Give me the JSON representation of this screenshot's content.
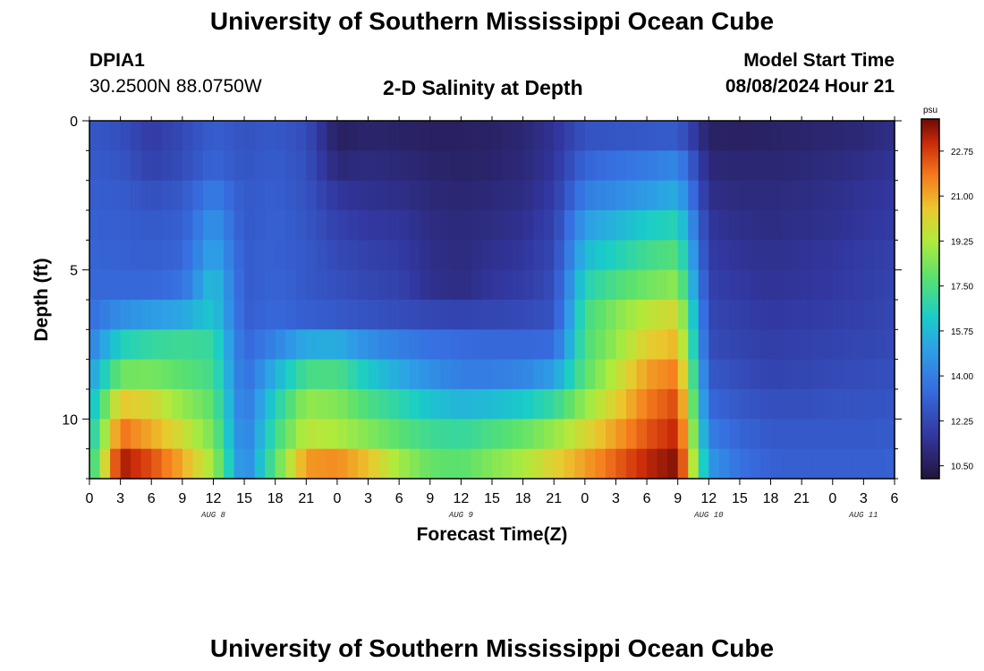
{
  "header": {
    "main_title": "University of Southern Mississippi Ocean Cube",
    "station_name": "DPIA1",
    "station_coords": "30.2500N  88.0750W",
    "plot_title": "2-D Salinity at Depth",
    "model_start_label": "Model Start Time",
    "model_start_value": "08/08/2024 Hour 21"
  },
  "footer": {
    "title": "University of Southern Mississippi Ocean Cube"
  },
  "chart_data": {
    "type": "heatmap",
    "title": "2-D Salinity at Depth",
    "xlabel": "Forecast Time(Z)",
    "ylabel": "Depth (ft)",
    "colorbar_unit": "psu",
    "ylim": [
      0,
      12
    ],
    "y_ticks": [
      "0",
      "5",
      "10"
    ],
    "x_tick_labels": [
      "0",
      "3",
      "6",
      "9",
      "12",
      "15",
      "18",
      "21",
      "0",
      "3",
      "6",
      "9",
      "12",
      "15",
      "18",
      "21",
      "0",
      "3",
      "6",
      "9",
      "12",
      "15",
      "18",
      "21",
      "0",
      "3",
      "6"
    ],
    "date_labels": [
      {
        "text": "AUG 8",
        "hour": 12
      },
      {
        "text": "AUG 9",
        "hour": 36
      },
      {
        "text": "AUG 10",
        "hour": 60
      },
      {
        "text": "AUG 11",
        "hour": 75
      }
    ],
    "colorbar_ticks": [
      "22.75",
      "21.00",
      "19.25",
      "17.50",
      "15.75",
      "14.00",
      "12.25",
      "10.50"
    ],
    "colorbar_values": [
      22.75,
      21.0,
      19.25,
      17.5,
      15.75,
      14.0,
      12.25,
      10.5
    ],
    "value_range": [
      10.0,
      24.0
    ],
    "depth_levels_ft": [
      0.5,
      1.5,
      2.5,
      3.5,
      4.5,
      5.5,
      6.5,
      7.5,
      8.5,
      9.5,
      10.5,
      11.5
    ],
    "hours": [
      0,
      3,
      6,
      9,
      12,
      15,
      18,
      21,
      24,
      27,
      30,
      33,
      36,
      39,
      42,
      45,
      48,
      51,
      54,
      57,
      60,
      63,
      66,
      69,
      72,
      75,
      78
    ],
    "salinity": [
      [
        12.8,
        12.5,
        11.8,
        12.3,
        13.0,
        12.6,
        12.8,
        12.4,
        10.6,
        10.8,
        10.7,
        10.6,
        10.6,
        10.7,
        10.9,
        11.5,
        12.6,
        12.7,
        12.8,
        12.9,
        10.7,
        10.6,
        10.7,
        10.8,
        10.9,
        11.0,
        11.3
      ],
      [
        12.9,
        12.7,
        12.0,
        12.4,
        13.2,
        12.7,
        12.9,
        12.5,
        11.0,
        11.1,
        11.0,
        10.8,
        10.7,
        10.8,
        11.0,
        11.6,
        13.2,
        13.6,
        13.9,
        14.3,
        11.0,
        10.9,
        10.9,
        11.0,
        11.1,
        11.3,
        11.5
      ],
      [
        13.0,
        12.9,
        12.5,
        12.8,
        14.0,
        12.8,
        13.0,
        12.6,
        11.6,
        11.4,
        11.3,
        11.0,
        10.9,
        11.0,
        11.2,
        11.8,
        14.0,
        14.4,
        14.9,
        15.4,
        11.3,
        11.1,
        11.1,
        11.2,
        11.3,
        11.5,
        11.7
      ],
      [
        13.1,
        13.0,
        12.8,
        13.0,
        14.7,
        12.8,
        13.1,
        12.7,
        12.0,
        11.7,
        11.6,
        11.2,
        11.0,
        11.2,
        11.4,
        12.0,
        15.0,
        15.6,
        16.3,
        16.7,
        11.6,
        11.3,
        11.2,
        11.3,
        11.4,
        11.6,
        11.8
      ],
      [
        13.2,
        13.1,
        13.0,
        13.2,
        15.3,
        12.9,
        13.1,
        12.8,
        12.3,
        12.0,
        11.8,
        11.3,
        11.1,
        11.4,
        11.6,
        12.2,
        15.8,
        16.5,
        17.3,
        17.7,
        11.8,
        11.5,
        11.4,
        11.5,
        11.6,
        11.8,
        12.0
      ],
      [
        13.3,
        13.3,
        13.3,
        13.6,
        16.0,
        12.9,
        13.2,
        12.8,
        12.5,
        12.2,
        12.0,
        11.4,
        11.2,
        11.6,
        11.8,
        12.4,
        16.6,
        17.5,
        18.2,
        18.7,
        12.0,
        11.7,
        11.5,
        11.6,
        11.7,
        11.9,
        12.1
      ],
      [
        13.5,
        14.5,
        14.9,
        15.2,
        16.2,
        13.0,
        13.3,
        13.0,
        12.8,
        12.6,
        12.4,
        12.2,
        12.1,
        12.2,
        12.3,
        12.6,
        17.3,
        18.5,
        19.5,
        20.0,
        12.2,
        11.9,
        11.7,
        11.8,
        11.9,
        12.0,
        12.2
      ],
      [
        14.0,
        16.5,
        17.0,
        17.2,
        17.0,
        13.2,
        14.2,
        15.3,
        15.4,
        14.5,
        14.0,
        13.6,
        13.4,
        13.3,
        13.3,
        13.4,
        17.5,
        18.8,
        20.3,
        20.8,
        12.4,
        12.1,
        11.9,
        12.0,
        12.1,
        12.2,
        12.3
      ],
      [
        14.8,
        18.2,
        18.3,
        17.8,
        17.3,
        13.4,
        15.5,
        17.4,
        17.5,
        16.2,
        15.3,
        14.5,
        14.0,
        14.0,
        14.2,
        15.0,
        17.8,
        19.5,
        21.2,
        21.8,
        12.8,
        12.4,
        12.1,
        12.2,
        12.3,
        12.4,
        12.5
      ],
      [
        15.5,
        20.5,
        20.0,
        18.8,
        17.8,
        13.6,
        16.5,
        18.8,
        18.5,
        17.5,
        16.8,
        16.0,
        15.6,
        15.8,
        16.2,
        17.0,
        18.8,
        20.3,
        21.8,
        22.6,
        13.3,
        12.8,
        12.5,
        12.5,
        12.6,
        12.6,
        12.7
      ],
      [
        16.0,
        22.0,
        21.0,
        19.8,
        18.3,
        13.8,
        17.2,
        19.5,
        19.2,
        18.5,
        17.8,
        17.2,
        17.0,
        17.5,
        18.0,
        18.8,
        20.0,
        21.2,
        22.4,
        23.2,
        14.0,
        13.2,
        12.8,
        12.8,
        12.8,
        12.8,
        12.9
      ],
      [
        16.5,
        23.5,
        22.5,
        21.0,
        19.0,
        14.0,
        17.8,
        21.3,
        21.5,
        20.6,
        19.0,
        18.0,
        17.8,
        18.5,
        19.2,
        20.2,
        21.2,
        22.2,
        23.2,
        23.8,
        14.8,
        13.6,
        13.1,
        13.0,
        13.0,
        13.0,
        13.1
      ]
    ]
  }
}
